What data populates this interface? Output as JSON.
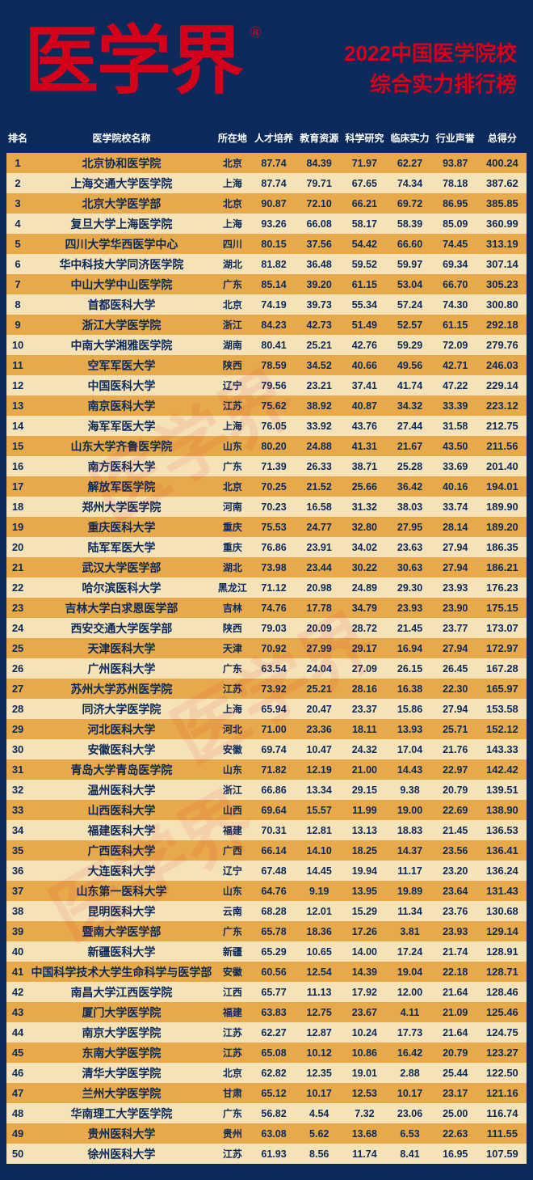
{
  "logo": "医学界",
  "logo_mark": "®",
  "title_line1_year": "2022",
  "title_line1_rest": "中国医学院校",
  "title_line2": "综合实力排行榜",
  "colors": {
    "page_bg": "#0a2a5c",
    "brand_red": "#d4001a",
    "row_odd": "#e8a94a",
    "row_even": "#f6e2b7",
    "text_on_row": "#0a2a5c",
    "header_text": "#ffffff"
  },
  "columns": [
    "排名",
    "医学院校名称",
    "所在地",
    "人才培养",
    "教育资源",
    "科学研究",
    "临床实力",
    "行业声誉",
    "总得分"
  ],
  "rows": [
    [
      "1",
      "北京协和医学院",
      "北京",
      "87.74",
      "84.39",
      "71.97",
      "62.27",
      "93.87",
      "400.24"
    ],
    [
      "2",
      "上海交通大学医学院",
      "上海",
      "87.74",
      "79.71",
      "67.65",
      "74.34",
      "78.18",
      "387.62"
    ],
    [
      "3",
      "北京大学医学部",
      "北京",
      "90.87",
      "72.10",
      "66.21",
      "69.72",
      "86.95",
      "385.85"
    ],
    [
      "4",
      "复旦大学上海医学院",
      "上海",
      "93.26",
      "66.08",
      "58.17",
      "58.39",
      "85.09",
      "360.99"
    ],
    [
      "5",
      "四川大学华西医学中心",
      "四川",
      "80.15",
      "37.56",
      "54.42",
      "66.60",
      "74.45",
      "313.19"
    ],
    [
      "6",
      "华中科技大学同济医学院",
      "湖北",
      "81.82",
      "36.48",
      "59.52",
      "59.97",
      "69.34",
      "307.14"
    ],
    [
      "7",
      "中山大学中山医学院",
      "广东",
      "85.14",
      "39.20",
      "61.15",
      "53.04",
      "66.70",
      "305.23"
    ],
    [
      "8",
      "首都医科大学",
      "北京",
      "74.19",
      "39.73",
      "55.34",
      "57.24",
      "74.30",
      "300.80"
    ],
    [
      "9",
      "浙江大学医学院",
      "浙江",
      "84.23",
      "42.73",
      "51.49",
      "52.57",
      "61.15",
      "292.18"
    ],
    [
      "10",
      "中南大学湘雅医学院",
      "湖南",
      "80.41",
      "25.21",
      "42.76",
      "59.29",
      "72.09",
      "279.76"
    ],
    [
      "11",
      "空军军医大学",
      "陕西",
      "78.59",
      "34.52",
      "40.66",
      "49.56",
      "42.71",
      "246.03"
    ],
    [
      "12",
      "中国医科大学",
      "辽宁",
      "79.56",
      "23.21",
      "37.41",
      "41.74",
      "47.22",
      "229.14"
    ],
    [
      "13",
      "南京医科大学",
      "江苏",
      "75.62",
      "38.92",
      "40.87",
      "34.32",
      "33.39",
      "223.12"
    ],
    [
      "14",
      "海军军医大学",
      "上海",
      "76.05",
      "33.92",
      "43.76",
      "27.44",
      "31.58",
      "212.75"
    ],
    [
      "15",
      "山东大学齐鲁医学院",
      "山东",
      "80.20",
      "24.88",
      "41.31",
      "21.67",
      "43.50",
      "211.56"
    ],
    [
      "16",
      "南方医科大学",
      "广东",
      "71.39",
      "26.33",
      "38.71",
      "25.28",
      "33.69",
      "201.40"
    ],
    [
      "17",
      "解放军医学院",
      "北京",
      "70.25",
      "21.52",
      "25.66",
      "36.42",
      "40.16",
      "194.01"
    ],
    [
      "18",
      "郑州大学医学院",
      "河南",
      "70.23",
      "16.58",
      "31.32",
      "38.03",
      "33.74",
      "189.90"
    ],
    [
      "19",
      "重庆医科大学",
      "重庆",
      "75.53",
      "24.77",
      "32.80",
      "27.95",
      "28.14",
      "189.20"
    ],
    [
      "20",
      "陆军军医大学",
      "重庆",
      "76.86",
      "23.91",
      "34.02",
      "23.63",
      "27.94",
      "186.35"
    ],
    [
      "21",
      "武汉大学医学部",
      "湖北",
      "73.98",
      "23.44",
      "30.22",
      "30.63",
      "27.94",
      "186.21"
    ],
    [
      "22",
      "哈尔滨医科大学",
      "黑龙江",
      "71.12",
      "20.98",
      "24.89",
      "29.30",
      "23.93",
      "176.23"
    ],
    [
      "23",
      "吉林大学白求恩医学部",
      "吉林",
      "74.76",
      "17.78",
      "34.79",
      "23.93",
      "23.90",
      "175.15"
    ],
    [
      "24",
      "西安交通大学医学部",
      "陕西",
      "79.03",
      "20.09",
      "28.72",
      "21.45",
      "23.77",
      "173.07"
    ],
    [
      "25",
      "天津医科大学",
      "天津",
      "70.92",
      "27.99",
      "29.17",
      "16.94",
      "27.94",
      "172.97"
    ],
    [
      "26",
      "广州医科大学",
      "广东",
      "63.54",
      "24.04",
      "27.09",
      "26.15",
      "26.45",
      "167.28"
    ],
    [
      "27",
      "苏州大学苏州医学院",
      "江苏",
      "73.92",
      "25.21",
      "28.16",
      "16.38",
      "22.30",
      "165.97"
    ],
    [
      "28",
      "同济大学医学院",
      "上海",
      "65.94",
      "20.47",
      "23.37",
      "15.86",
      "27.94",
      "153.58"
    ],
    [
      "29",
      "河北医科大学",
      "河北",
      "71.00",
      "23.36",
      "18.11",
      "13.93",
      "25.71",
      "152.12"
    ],
    [
      "30",
      "安徽医科大学",
      "安徽",
      "69.74",
      "10.47",
      "24.32",
      "17.04",
      "21.76",
      "143.33"
    ],
    [
      "31",
      "青岛大学青岛医学院",
      "山东",
      "71.82",
      "12.19",
      "21.00",
      "14.43",
      "22.97",
      "142.42"
    ],
    [
      "32",
      "温州医科大学",
      "浙江",
      "66.86",
      "13.34",
      "29.15",
      "9.38",
      "20.79",
      "139.51"
    ],
    [
      "33",
      "山西医科大学",
      "山西",
      "69.64",
      "15.57",
      "11.99",
      "19.00",
      "22.69",
      "138.90"
    ],
    [
      "34",
      "福建医科大学",
      "福建",
      "70.31",
      "12.81",
      "13.13",
      "18.83",
      "21.45",
      "136.53"
    ],
    [
      "35",
      "广西医科大学",
      "广西",
      "66.14",
      "14.10",
      "18.25",
      "14.37",
      "23.56",
      "136.41"
    ],
    [
      "36",
      "大连医科大学",
      "辽宁",
      "67.48",
      "14.45",
      "19.94",
      "11.17",
      "23.20",
      "136.24"
    ],
    [
      "37",
      "山东第一医科大学",
      "山东",
      "64.76",
      "9.19",
      "13.95",
      "19.89",
      "23.64",
      "131.43"
    ],
    [
      "38",
      "昆明医科大学",
      "云南",
      "68.28",
      "12.01",
      "15.29",
      "11.34",
      "23.76",
      "130.68"
    ],
    [
      "39",
      "暨南大学医学部",
      "广东",
      "65.78",
      "18.36",
      "17.26",
      "3.81",
      "23.93",
      "129.14"
    ],
    [
      "40",
      "新疆医科大学",
      "新疆",
      "65.29",
      "10.65",
      "14.00",
      "17.24",
      "21.74",
      "128.91"
    ],
    [
      "41",
      "中国科学技术大学生命科学与医学部",
      "安徽",
      "60.56",
      "12.54",
      "14.39",
      "19.04",
      "22.18",
      "128.71"
    ],
    [
      "42",
      "南昌大学江西医学院",
      "江西",
      "65.77",
      "11.13",
      "17.92",
      "12.00",
      "21.64",
      "128.46"
    ],
    [
      "43",
      "厦门大学医学院",
      "福建",
      "63.83",
      "12.75",
      "23.67",
      "4.11",
      "21.09",
      "125.46"
    ],
    [
      "44",
      "南京大学医学院",
      "江苏",
      "62.27",
      "12.87",
      "10.24",
      "17.73",
      "21.64",
      "124.75"
    ],
    [
      "45",
      "东南大学医学院",
      "江苏",
      "65.08",
      "10.12",
      "10.86",
      "16.42",
      "20.79",
      "123.27"
    ],
    [
      "46",
      "清华大学医学院",
      "北京",
      "62.82",
      "12.35",
      "19.01",
      "2.88",
      "25.44",
      "122.50"
    ],
    [
      "47",
      "兰州大学医学院",
      "甘肃",
      "65.12",
      "10.17",
      "12.53",
      "10.17",
      "23.17",
      "121.16"
    ],
    [
      "48",
      "华南理工大学医学院",
      "广东",
      "56.82",
      "4.54",
      "7.32",
      "23.06",
      "25.00",
      "116.74"
    ],
    [
      "49",
      "贵州医科大学",
      "贵州",
      "63.08",
      "5.62",
      "13.68",
      "6.53",
      "22.63",
      "111.55"
    ],
    [
      "50",
      "徐州医科大学",
      "江苏",
      "61.93",
      "8.56",
      "11.74",
      "8.41",
      "16.95",
      "107.59"
    ]
  ]
}
